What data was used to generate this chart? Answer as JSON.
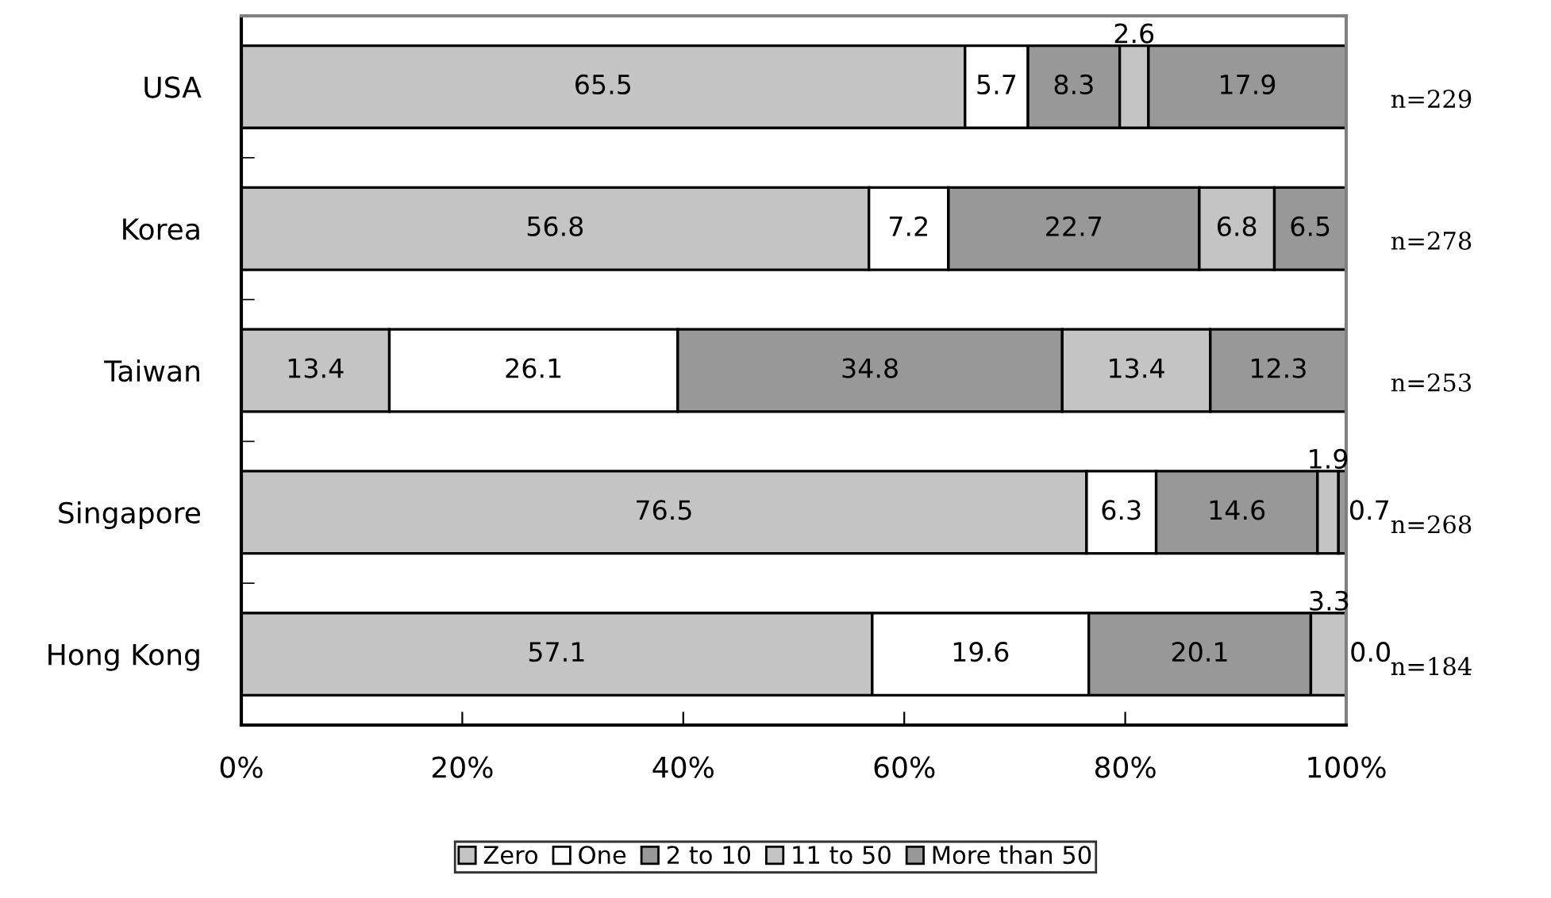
{
  "chart_data": {
    "type": "bar",
    "orientation": "horizontal",
    "stacked": true,
    "categories": [
      "USA",
      "Korea",
      "Taiwan",
      "Singapore",
      "Hong Kong"
    ],
    "series": [
      {
        "name": "Zero",
        "color": "#c4c4c4",
        "values": [
          65.5,
          56.8,
          13.4,
          76.5,
          57.1
        ],
        "value_labels": [
          "65.5",
          "56.8",
          "13.4",
          "76.5",
          "57.1"
        ]
      },
      {
        "name": "One",
        "color": "#ffffff",
        "values": [
          5.7,
          7.2,
          26.1,
          6.3,
          19.6
        ],
        "value_labels": [
          "5.7",
          "7.2",
          "26.1",
          "6.3",
          "19.6"
        ]
      },
      {
        "name": "2 to 10",
        "color": "#989898",
        "values": [
          8.3,
          22.7,
          34.8,
          14.6,
          20.1
        ],
        "value_labels": [
          "8.3",
          "22.7",
          "34.8",
          "14.6",
          "20.1"
        ]
      },
      {
        "name": "11 to 50",
        "color": "#c4c4c4",
        "values": [
          2.6,
          6.8,
          13.4,
          1.9,
          3.3
        ],
        "value_labels": [
          "2.6",
          "6.8",
          "13.4",
          "1.9",
          "3.3"
        ]
      },
      {
        "name": "More than 50",
        "color": "#989898",
        "values": [
          17.9,
          6.5,
          12.3,
          0.7,
          0.0
        ],
        "value_labels": [
          "17.9",
          "6.5",
          "12.3",
          "0.7",
          "0.0"
        ]
      }
    ],
    "xlim": [
      0,
      100
    ],
    "xticks": [
      {
        "value": 0,
        "label": "0%"
      },
      {
        "value": 20,
        "label": "20%"
      },
      {
        "value": 40,
        "label": "40%"
      },
      {
        "value": 60,
        "label": "60%"
      },
      {
        "value": 80,
        "label": "80%"
      },
      {
        "value": 100,
        "label": "100%"
      }
    ],
    "annotations": [
      "n=229",
      "n=278",
      "n=253",
      "n=268",
      "n=184"
    ],
    "grid": false,
    "legend": "bottom"
  }
}
